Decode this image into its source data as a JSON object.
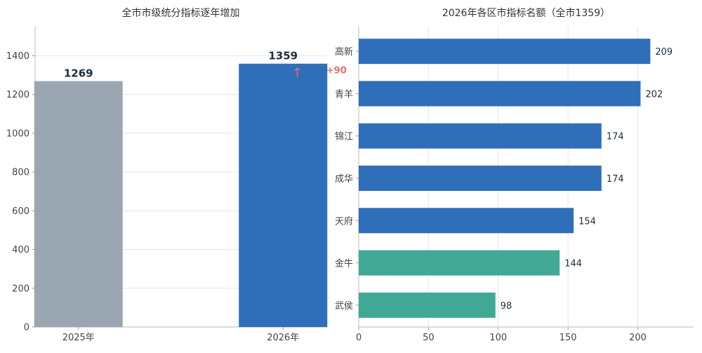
{
  "chart_data": [
    {
      "type": "bar",
      "title": "全市市级统分指标逐年增加",
      "categories": [
        "2025年",
        "2026年"
      ],
      "values": [
        1269,
        1359
      ],
      "ylim": [
        0,
        1550
      ],
      "yticks": [
        0,
        200,
        400,
        600,
        800,
        1000,
        1200,
        1400
      ],
      "grid": true,
      "colors": [
        "#9aa7b2",
        "#2f6fba"
      ],
      "annotation": {
        "category": "2026年",
        "arrow": "↑",
        "text": "+90",
        "color": "#e07070"
      }
    },
    {
      "type": "bar",
      "orientation": "horizontal",
      "title": "2026年各区市指标名额（全市1359）",
      "categories": [
        "高新",
        "青羊",
        "锦江",
        "成华",
        "天府",
        "金牛",
        "武侯"
      ],
      "values": [
        209,
        202,
        174,
        174,
        154,
        144,
        98
      ],
      "xlim": [
        0,
        240
      ],
      "xticks": [
        0,
        50,
        100,
        150,
        200
      ],
      "grid": true,
      "colors": [
        "#2f6fba",
        "#2f6fba",
        "#2f6fba",
        "#2f6fba",
        "#2f6fba",
        "#41a896",
        "#41a896"
      ]
    }
  ]
}
